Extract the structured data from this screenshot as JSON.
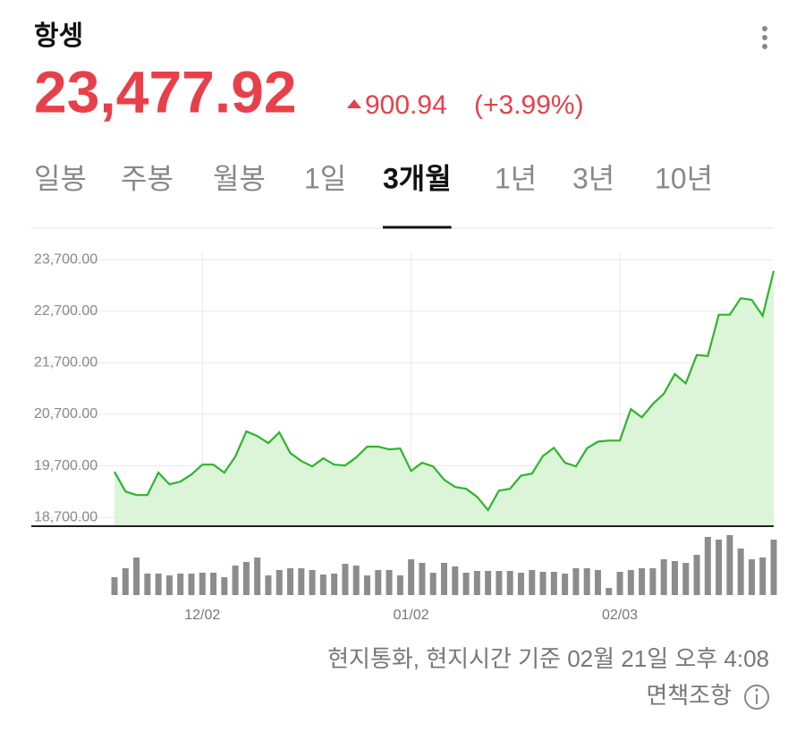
{
  "header": {
    "title": "항셍",
    "price": "23,477.92",
    "change": "900.94",
    "change_pct": "(+3.99%)"
  },
  "tabs": [
    "일봉",
    "주봉",
    "월봉",
    "1일",
    "3개월",
    "1년",
    "3년",
    "10년"
  ],
  "selected_tab": 4,
  "chart_data": {
    "type": "line",
    "color": "#2db52d",
    "fill": "#dcf5d8",
    "categories": [
      null,
      null,
      null,
      null,
      null,
      null,
      null,
      null,
      "12/02",
      null,
      null,
      null,
      null,
      null,
      null,
      null,
      null,
      null,
      null,
      null,
      null,
      null,
      null,
      null,
      null,
      null,
      null,
      "01/02",
      null,
      null,
      null,
      null,
      null,
      null,
      null,
      null,
      null,
      null,
      null,
      null,
      null,
      null,
      null,
      null,
      null,
      null,
      "02/03",
      null,
      null,
      null,
      null,
      null,
      null,
      null,
      null,
      null,
      null,
      null,
      null,
      null,
      null
    ],
    "values": [
      19585,
      19203,
      19134,
      19134,
      19568,
      19342,
      19394,
      19533,
      19724,
      19724,
      19568,
      19880,
      20367,
      20280,
      20141,
      20349,
      19950,
      19794,
      19690,
      19846,
      19724,
      19707,
      19863,
      20072,
      20072,
      20019,
      20037,
      19603,
      19760,
      19690,
      19430,
      19290,
      19255,
      19100,
      18840,
      19220,
      19255,
      19510,
      19550,
      19890,
      20050,
      19760,
      19690,
      20040,
      20170,
      20190,
      20190,
      20800,
      20640,
      20900,
      21100,
      21480,
      21300,
      21850,
      21830,
      22630,
      22630,
      22950,
      22920,
      22610,
      23480
    ],
    "ylim": [
      18530,
      23840
    ],
    "yticks": [
      {
        "value": 23700,
        "label": "23,700.00"
      },
      {
        "value": 22700,
        "label": "22,700.00"
      },
      {
        "value": 21700,
        "label": "21,700.00"
      },
      {
        "value": 20700,
        "label": "20,700.00"
      },
      {
        "value": 19700,
        "label": "19,700.00"
      },
      {
        "value": 18700,
        "label": "18,700.00"
      }
    ],
    "grid": true,
    "volume": {
      "color": "#8c8c8c",
      "ylim": [
        0,
        70
      ],
      "values": [
        20,
        30,
        42,
        24,
        24,
        22,
        24,
        24,
        25,
        25,
        20,
        33,
        37,
        42,
        22,
        28,
        30,
        30,
        28,
        23,
        24,
        35,
        33,
        22,
        28,
        28,
        22,
        40,
        36,
        25,
        36,
        32,
        25,
        27,
        27,
        27,
        27,
        25,
        28,
        26,
        26,
        24,
        30,
        30,
        28,
        8,
        26,
        28,
        30,
        30,
        40,
        38,
        36,
        45,
        65,
        62,
        67,
        52,
        40,
        42,
        62
      ]
    }
  },
  "footer": {
    "note": "현지통화, 현지시간 기준 02월 21일 오후 4:08",
    "disclaimer": "면책조항"
  }
}
